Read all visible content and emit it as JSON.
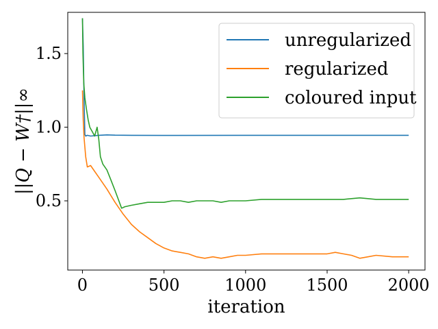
{
  "chart_data": {
    "type": "line",
    "xlabel": "iteration",
    "ylabel": "||Q − W†||∞",
    "xlim": [
      -90,
      2100
    ],
    "ylim": [
      0.03,
      1.78
    ],
    "xticks": [
      0,
      500,
      1000,
      1500,
      2000
    ],
    "xtick_labels": [
      "0",
      "500",
      "1000",
      "1500",
      "2000"
    ],
    "yticks": [
      0.5,
      1.0,
      1.5
    ],
    "ytick_labels": [
      "0.5",
      "1.0",
      "1.5"
    ],
    "grid": false,
    "legend_position": "top-right",
    "series": [
      {
        "name": "unregularized",
        "color": "#1f77b4",
        "x": [
          0,
          5,
          10,
          15,
          20,
          30,
          50,
          100,
          150,
          200,
          300,
          500,
          1000,
          1500,
          2000
        ],
        "y": [
          1.74,
          1.55,
          1.2,
          0.95,
          0.94,
          0.945,
          0.94,
          0.945,
          0.948,
          0.946,
          0.945,
          0.944,
          0.945,
          0.945,
          0.945
        ]
      },
      {
        "name": "regularized",
        "color": "#ff7f0e",
        "x": [
          0,
          5,
          10,
          20,
          30,
          50,
          75,
          100,
          150,
          200,
          250,
          300,
          350,
          400,
          450,
          500,
          550,
          600,
          650,
          700,
          750,
          800,
          850,
          900,
          950,
          1000,
          1100,
          1200,
          1300,
          1400,
          1500,
          1550,
          1600,
          1650,
          1700,
          1750,
          1800,
          1900,
          2000
        ],
        "y": [
          1.25,
          1.05,
          0.93,
          0.8,
          0.73,
          0.74,
          0.7,
          0.66,
          0.58,
          0.49,
          0.41,
          0.34,
          0.29,
          0.25,
          0.21,
          0.18,
          0.16,
          0.15,
          0.14,
          0.12,
          0.11,
          0.12,
          0.11,
          0.12,
          0.13,
          0.13,
          0.14,
          0.14,
          0.14,
          0.14,
          0.14,
          0.15,
          0.14,
          0.13,
          0.11,
          0.12,
          0.13,
          0.12,
          0.12
        ]
      },
      {
        "name": "coloured input",
        "color": "#2ca02c",
        "x": [
          0,
          3,
          8,
          15,
          25,
          35,
          45,
          60,
          75,
          90,
          100,
          110,
          125,
          150,
          175,
          200,
          220,
          240,
          260,
          300,
          350,
          400,
          450,
          500,
          550,
          600,
          650,
          700,
          750,
          800,
          850,
          900,
          1000,
          1100,
          1200,
          1300,
          1400,
          1500,
          1600,
          1700,
          1800,
          1900,
          2000
        ],
        "y": [
          1.74,
          1.5,
          1.3,
          1.2,
          1.12,
          1.05,
          1.0,
          0.97,
          0.94,
          1.0,
          0.92,
          0.8,
          0.75,
          0.71,
          0.64,
          0.57,
          0.51,
          0.45,
          0.46,
          0.47,
          0.48,
          0.49,
          0.49,
          0.49,
          0.5,
          0.5,
          0.49,
          0.5,
          0.5,
          0.5,
          0.49,
          0.5,
          0.5,
          0.51,
          0.51,
          0.51,
          0.51,
          0.51,
          0.51,
          0.52,
          0.51,
          0.51,
          0.51
        ]
      }
    ]
  }
}
